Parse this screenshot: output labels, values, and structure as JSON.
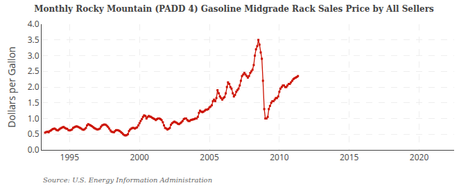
{
  "chart_data": {
    "type": "line",
    "title": "Monthly Rocky Mountain (PADD 4) Gasoline Midgrade Rack Sales Price by All Sellers",
    "ylabel": "Dollars per Gallon",
    "annotations": [
      "Source: U.S. Energy Information Administration"
    ],
    "color": "#CC1100",
    "marker": "square",
    "grid": true,
    "xlim": [
      1993.0,
      2022.5
    ],
    "ylim": [
      0.0,
      4.0
    ],
    "xticks": [
      1995,
      2000,
      2005,
      2010,
      2015,
      2020
    ],
    "yticks": [
      {
        "value": 0.0,
        "label": "0.0"
      },
      0.5,
      {
        "value": 1.0,
        "label": "1.0"
      },
      1.5,
      {
        "value": 2.0,
        "label": "2.0"
      },
      2.5,
      {
        "value": 3.0,
        "label": "3.0"
      },
      3.5,
      {
        "value": 4.0,
        "label": "4.0"
      }
    ],
    "x": [
      1993.25,
      1993.33,
      1993.42,
      1993.5,
      1993.58,
      1993.67,
      1993.75,
      1993.83,
      1993.92,
      1994.0,
      1994.08,
      1994.17,
      1994.25,
      1994.33,
      1994.42,
      1994.5,
      1994.58,
      1994.67,
      1994.75,
      1994.83,
      1994.92,
      1995.0,
      1995.08,
      1995.17,
      1995.25,
      1995.33,
      1995.42,
      1995.5,
      1995.58,
      1995.67,
      1995.75,
      1995.83,
      1995.92,
      1996.0,
      1996.08,
      1996.17,
      1996.25,
      1996.33,
      1996.42,
      1996.5,
      1996.58,
      1996.67,
      1996.75,
      1996.83,
      1996.92,
      1997.0,
      1997.08,
      1997.17,
      1997.25,
      1997.33,
      1997.42,
      1997.5,
      1997.58,
      1997.67,
      1997.75,
      1997.83,
      1997.92,
      1998.0,
      1998.08,
      1998.17,
      1998.25,
      1998.33,
      1998.42,
      1998.5,
      1998.58,
      1998.67,
      1998.75,
      1998.83,
      1998.92,
      1999.0,
      1999.08,
      1999.17,
      1999.25,
      1999.33,
      1999.42,
      1999.5,
      1999.58,
      1999.67,
      1999.75,
      1999.83,
      1999.92,
      2000.0,
      2000.08,
      2000.17,
      2000.25,
      2000.33,
      2000.42,
      2000.5,
      2000.58,
      2000.67,
      2000.75,
      2000.83,
      2000.92,
      2001.0,
      2001.08,
      2001.17,
      2001.25,
      2001.33,
      2001.42,
      2001.5,
      2001.58,
      2001.67,
      2001.75,
      2001.83,
      2001.92,
      2002.0,
      2002.08,
      2002.17,
      2002.25,
      2002.33,
      2002.42,
      2002.5,
      2002.58,
      2002.67,
      2002.75,
      2002.83,
      2002.92,
      2003.0,
      2003.08,
      2003.17,
      2003.25,
      2003.33,
      2003.42,
      2003.5,
      2003.58,
      2003.67,
      2003.75,
      2003.83,
      2003.92,
      2004.0,
      2004.08,
      2004.17,
      2004.25,
      2004.33,
      2004.42,
      2004.5,
      2004.58,
      2004.67,
      2004.75,
      2004.83,
      2004.92,
      2005.0,
      2005.08,
      2005.17,
      2005.25,
      2005.33,
      2005.42,
      2005.5,
      2005.58,
      2005.67,
      2005.75,
      2005.83,
      2005.92,
      2006.0,
      2006.08,
      2006.17,
      2006.25,
      2006.33,
      2006.42,
      2006.5,
      2006.58,
      2006.67,
      2006.75,
      2006.83,
      2006.92,
      2007.0,
      2007.08,
      2007.17,
      2007.25,
      2007.33,
      2007.42,
      2007.5,
      2007.58,
      2007.67,
      2007.75,
      2007.83,
      2007.92,
      2008.0,
      2008.08,
      2008.17,
      2008.25,
      2008.33,
      2008.42,
      2008.5,
      2008.58,
      2008.67,
      2008.75,
      2008.83,
      2008.92,
      2009.0,
      2009.08,
      2009.17,
      2009.25,
      2009.33,
      2009.42,
      2009.5,
      2009.58,
      2009.67,
      2009.75,
      2009.83,
      2009.92,
      2010.0,
      2010.08,
      2010.17,
      2010.25,
      2010.33,
      2010.42,
      2010.5,
      2010.58,
      2010.67,
      2010.75,
      2010.83,
      2010.92,
      2011.0,
      2011.08,
      2011.17,
      2011.25,
      2011.33
    ],
    "values": [
      0.55,
      0.57,
      0.58,
      0.56,
      0.6,
      0.62,
      0.65,
      0.67,
      0.68,
      0.66,
      0.63,
      0.62,
      0.65,
      0.68,
      0.7,
      0.72,
      0.73,
      0.7,
      0.68,
      0.67,
      0.63,
      0.62,
      0.63,
      0.65,
      0.7,
      0.72,
      0.74,
      0.75,
      0.74,
      0.72,
      0.7,
      0.68,
      0.65,
      0.64,
      0.66,
      0.7,
      0.78,
      0.82,
      0.8,
      0.78,
      0.76,
      0.73,
      0.7,
      0.68,
      0.66,
      0.65,
      0.66,
      0.68,
      0.74,
      0.78,
      0.8,
      0.81,
      0.8,
      0.77,
      0.73,
      0.68,
      0.62,
      0.58,
      0.57,
      0.56,
      0.6,
      0.63,
      0.63,
      0.62,
      0.6,
      0.57,
      0.54,
      0.5,
      0.47,
      0.46,
      0.47,
      0.5,
      0.6,
      0.65,
      0.68,
      0.7,
      0.7,
      0.68,
      0.7,
      0.72,
      0.78,
      0.85,
      0.92,
      0.98,
      1.05,
      1.1,
      1.08,
      1.0,
      1.05,
      1.08,
      1.06,
      1.05,
      1.02,
      1.0,
      0.98,
      0.95,
      0.98,
      1.0,
      1.0,
      0.98,
      0.95,
      0.88,
      0.78,
      0.7,
      0.68,
      0.65,
      0.67,
      0.7,
      0.8,
      0.85,
      0.88,
      0.9,
      0.88,
      0.86,
      0.83,
      0.82,
      0.85,
      0.88,
      0.92,
      0.98,
      1.0,
      1.0,
      0.95,
      0.92,
      0.92,
      0.95,
      0.96,
      0.97,
      0.98,
      1.0,
      1.0,
      1.05,
      1.18,
      1.25,
      1.22,
      1.2,
      1.22,
      1.25,
      1.28,
      1.28,
      1.3,
      1.35,
      1.38,
      1.42,
      1.55,
      1.6,
      1.55,
      1.65,
      1.9,
      1.8,
      1.7,
      1.65,
      1.6,
      1.65,
      1.68,
      1.8,
      2.0,
      2.15,
      2.1,
      2.0,
      1.95,
      1.8,
      1.7,
      1.75,
      1.85,
      1.9,
      1.95,
      2.05,
      2.2,
      2.35,
      2.4,
      2.45,
      2.4,
      2.35,
      2.3,
      2.35,
      2.45,
      2.5,
      2.55,
      2.7,
      3.0,
      3.2,
      3.3,
      3.5,
      3.35,
      3.1,
      2.9,
      2.2,
      1.3,
      1.0,
      1.0,
      1.05,
      1.3,
      1.4,
      1.5,
      1.55,
      1.55,
      1.6,
      1.65,
      1.65,
      1.7,
      1.85,
      1.95,
      2.0,
      2.05,
      2.05,
      2.0,
      2.0,
      2.05,
      2.1,
      2.1,
      2.15,
      2.2,
      2.25,
      2.28,
      2.3,
      2.32,
      2.35
    ]
  }
}
